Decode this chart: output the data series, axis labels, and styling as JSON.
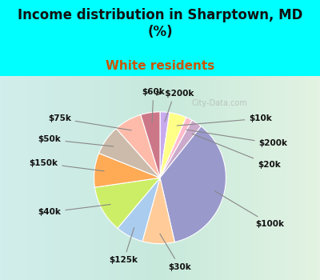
{
  "title": "Income distribution in Sharptown, MD\n(%)",
  "subtitle": "White residents",
  "title_fontsize": 12,
  "subtitle_fontsize": 11,
  "title_color": "#111111",
  "subtitle_color": "#cc5500",
  "background_color": "#00ffff",
  "labels": [
    "> $200k",
    "$10k",
    "$200k",
    "$20k",
    "$100k",
    "$30k",
    "$125k",
    "$40k",
    "$150k",
    "$50k",
    "$75k",
    "$60k"
  ],
  "values": [
    2.2,
    4.0,
    1.5,
    2.5,
    34.0,
    7.5,
    6.5,
    11.0,
    8.0,
    7.0,
    6.5,
    4.5
  ],
  "colors": [
    "#c8aaee",
    "#ffff88",
    "#ffbbcc",
    "#ccaacc",
    "#9999cc",
    "#ffcc99",
    "#aaccee",
    "#ccee66",
    "#ffaa55",
    "#ccbbaa",
    "#ffbbaa",
    "#cc7788"
  ],
  "figsize": [
    4.0,
    3.5
  ],
  "dpi": 100
}
